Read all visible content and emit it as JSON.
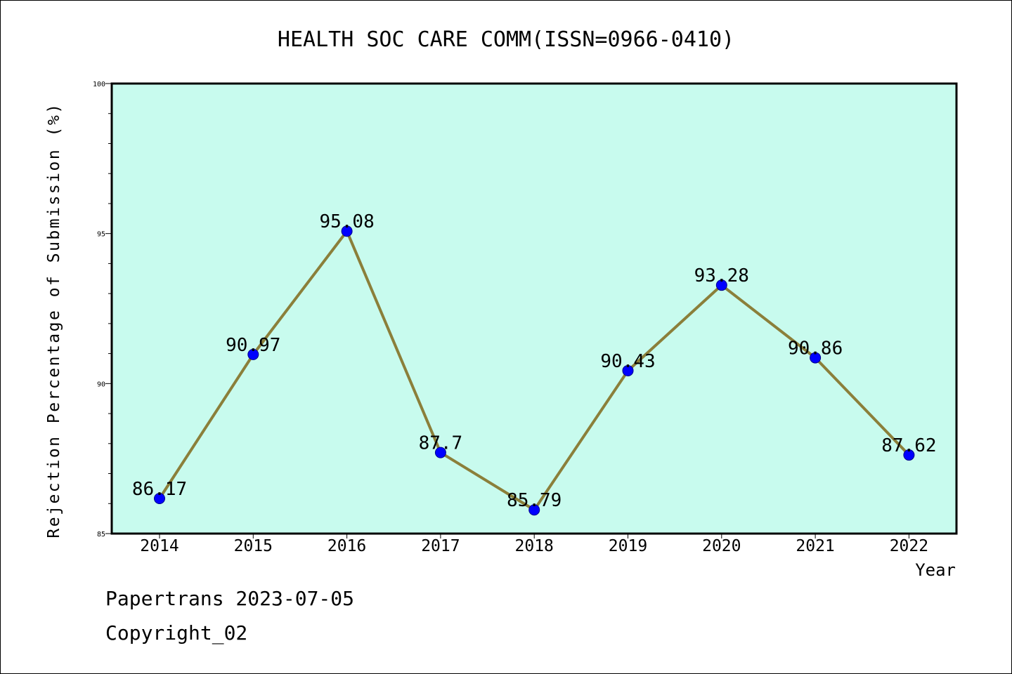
{
  "chart_data": {
    "type": "line",
    "title": "HEALTH SOC CARE COMM(ISSN=0966-0410)",
    "xlabel": "Year",
    "ylabel": "Rejection Percentage of Submission (%)",
    "categories": [
      "2014",
      "2015",
      "2016",
      "2017",
      "2018",
      "2019",
      "2020",
      "2021",
      "2022"
    ],
    "series": [
      {
        "values": [
          86.17,
          90.97,
          95.08,
          87.7,
          85.79,
          90.43,
          93.28,
          90.86,
          87.62
        ]
      }
    ],
    "data_labels": [
      "86.17",
      "90.97",
      "95.08",
      "87.7",
      "85.79",
      "90.43",
      "93.28",
      "90.86",
      "87.62"
    ],
    "ylim": [
      85,
      100
    ],
    "yticks": [
      85,
      90,
      95,
      100
    ],
    "grid": false,
    "legend": "none",
    "colors": {
      "plot_background": "#c8fbee",
      "line": "#8b7f3a",
      "marker": "#0000ff"
    }
  },
  "footer": {
    "date_text": "Papertrans 2023-07-05",
    "copyright_text": "Copyright_02"
  }
}
